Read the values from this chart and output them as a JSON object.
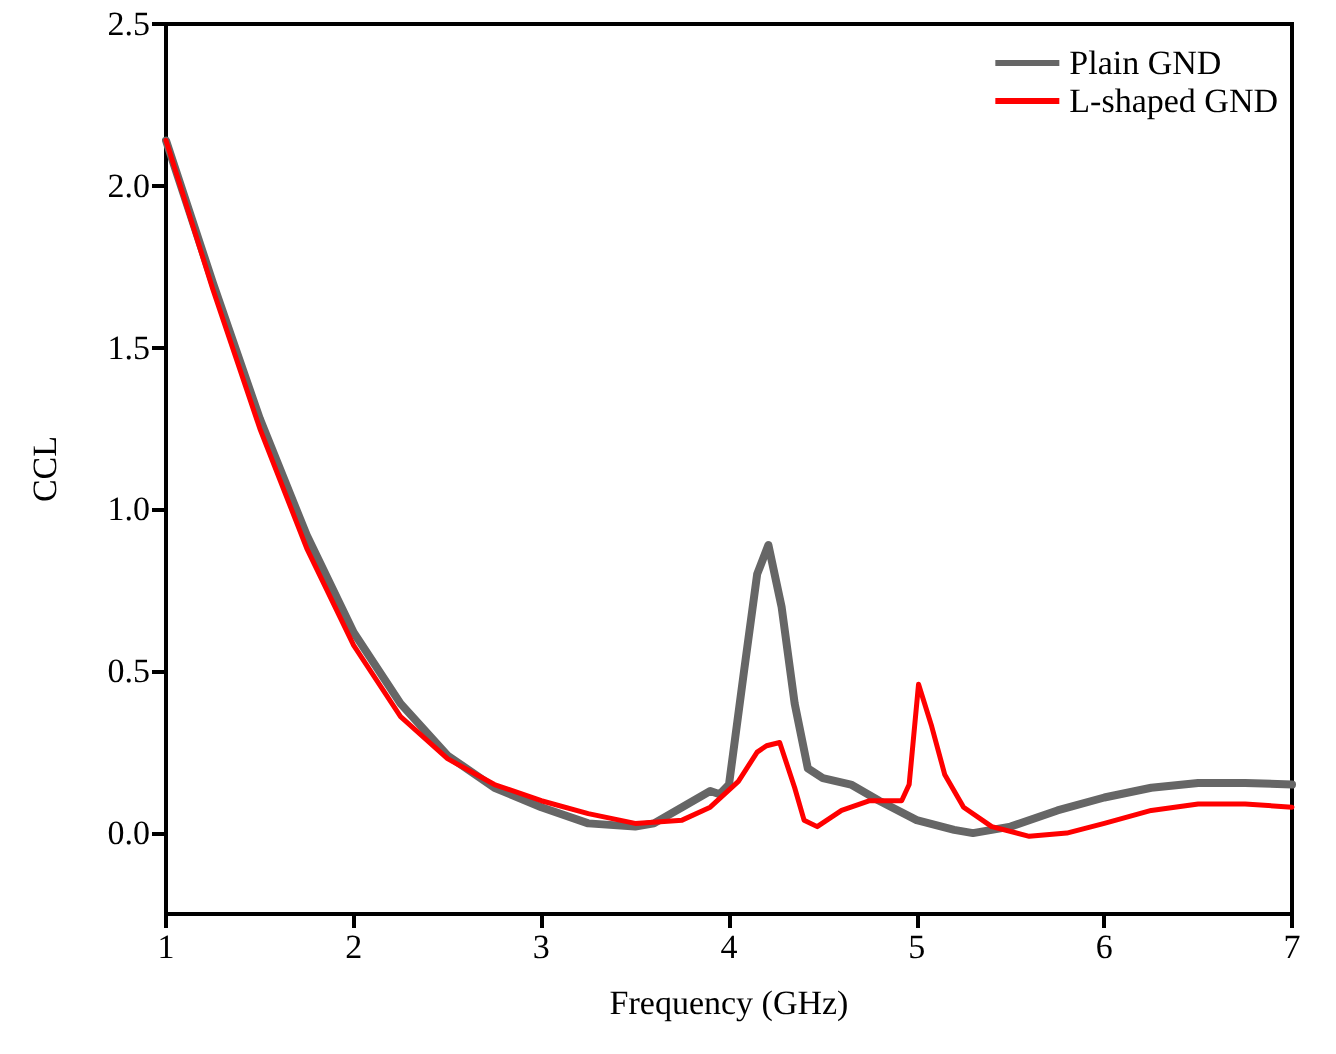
{
  "chart_data": {
    "type": "line",
    "xlabel": "Frequency (GHz)",
    "ylabel": "CCL",
    "xlim": [
      1,
      7
    ],
    "xticks": [
      1,
      2,
      3,
      4,
      5,
      6,
      7
    ],
    "ylim": [
      -0.25,
      2.5
    ],
    "yticks": [
      {
        "value": 0,
        "label": "0.0"
      },
      {
        "value": 0.5,
        "label": "0.5"
      },
      {
        "value": 1,
        "label": "1.0"
      },
      {
        "value": 1.5,
        "label": "1.5"
      },
      {
        "value": 2,
        "label": "2.0"
      },
      {
        "value": 2.5,
        "label": "2.5"
      }
    ],
    "grid": false,
    "legend": "top right",
    "marker": "none",
    "line_style": "solid",
    "series": [
      {
        "name": "Plain GND",
        "color": "#666666",
        "x": [
          1,
          1.25,
          1.5,
          1.75,
          2,
          2.25,
          2.5,
          2.75,
          3,
          3.25,
          3.5,
          3.6,
          3.75,
          3.9,
          3.95,
          4.0,
          4.08,
          4.15,
          4.21,
          4.28,
          4.35,
          4.42,
          4.5,
          4.65,
          4.8,
          5.0,
          5.2,
          5.3,
          5.5,
          5.75,
          6,
          6.25,
          6.5,
          6.75,
          7
        ],
        "values": [
          2.14,
          1.7,
          1.28,
          0.92,
          0.62,
          0.4,
          0.24,
          0.14,
          0.08,
          0.03,
          0.02,
          0.03,
          0.08,
          0.13,
          0.12,
          0.15,
          0.5,
          0.8,
          0.89,
          0.7,
          0.4,
          0.2,
          0.17,
          0.15,
          0.1,
          0.04,
          0.01,
          0.0,
          0.02,
          0.07,
          0.11,
          0.14,
          0.155,
          0.155,
          0.15
        ]
      },
      {
        "name": "L-shaped GND",
        "color": "#ff0000",
        "x": [
          1,
          1.25,
          1.5,
          1.75,
          2,
          2.25,
          2.5,
          2.75,
          3,
          3.25,
          3.5,
          3.75,
          3.9,
          4.05,
          4.15,
          4.2,
          4.27,
          4.35,
          4.4,
          4.47,
          4.6,
          4.75,
          4.92,
          4.96,
          5.01,
          5.08,
          5.15,
          5.25,
          5.4,
          5.6,
          5.8,
          6,
          6.25,
          6.5,
          6.75,
          7
        ],
        "values": [
          2.14,
          1.68,
          1.25,
          0.88,
          0.58,
          0.36,
          0.23,
          0.15,
          0.1,
          0.06,
          0.03,
          0.04,
          0.08,
          0.16,
          0.25,
          0.27,
          0.28,
          0.14,
          0.04,
          0.02,
          0.07,
          0.1,
          0.1,
          0.15,
          0.46,
          0.33,
          0.18,
          0.08,
          0.02,
          -0.01,
          0.0,
          0.03,
          0.07,
          0.09,
          0.09,
          0.08
        ]
      }
    ]
  }
}
